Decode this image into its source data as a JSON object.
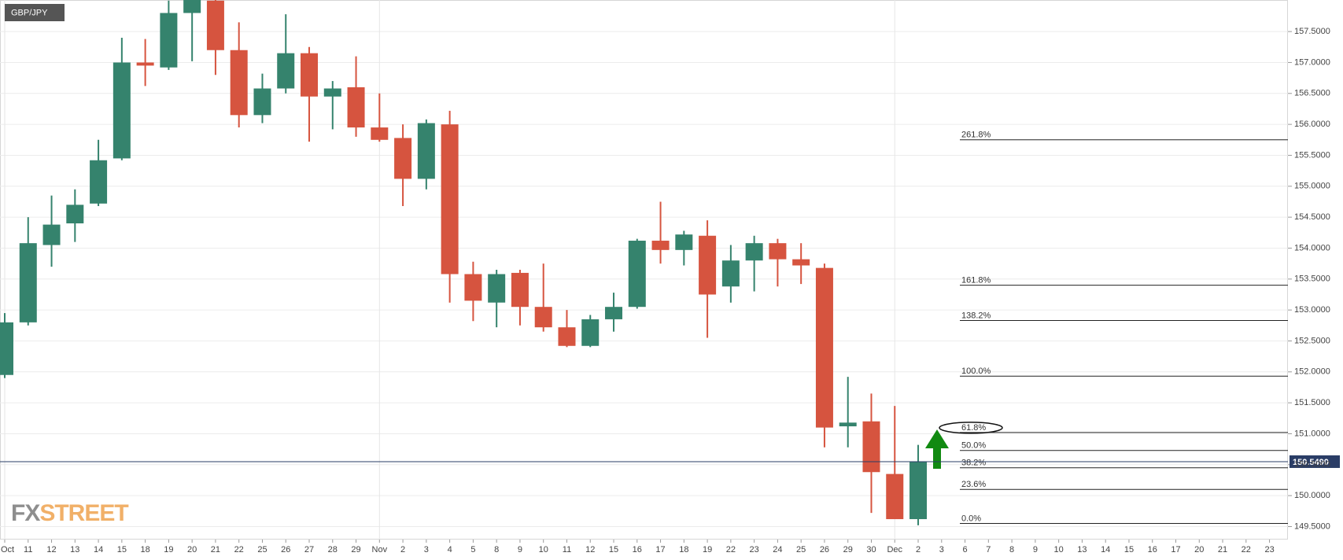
{
  "chart_data": {
    "type": "candlestick",
    "symbol": "GBP/JPY",
    "watermark": {
      "left": "FX",
      "right": "STREET"
    },
    "up_color": "#35836d",
    "down_color": "#d6543f",
    "categories": [
      "Oct",
      "11",
      "12",
      "13",
      "14",
      "15",
      "18",
      "19",
      "20",
      "21",
      "22",
      "25",
      "26",
      "27",
      "28",
      "29",
      "Nov",
      "2",
      "3",
      "4",
      "5",
      "8",
      "9",
      "10",
      "11",
      "12",
      "15",
      "16",
      "17",
      "18",
      "19",
      "22",
      "23",
      "24",
      "25",
      "26",
      "29",
      "30",
      "Dec",
      "2",
      "3",
      "6",
      "7",
      "8",
      "9",
      "10",
      "13",
      "14",
      "15",
      "16",
      "17",
      "20",
      "21",
      "22",
      "23"
    ],
    "open": [
      151.95,
      152.8,
      154.05,
      154.4,
      154.72,
      155.45,
      157.0,
      156.92,
      157.8,
      158.0,
      157.2,
      156.15,
      156.58,
      157.15,
      156.45,
      156.6,
      155.95,
      155.78,
      155.12,
      156.0,
      153.58,
      153.12,
      153.6,
      153.05,
      152.72,
      152.42,
      152.85,
      153.05,
      154.12,
      153.97,
      154.2,
      153.38,
      153.8,
      154.08,
      153.82,
      153.68,
      151.12,
      151.2,
      150.35,
      149.62,
      null,
      null,
      null,
      null,
      null,
      null,
      null,
      null,
      null,
      null,
      null,
      null,
      null,
      null,
      null
    ],
    "high": [
      152.95,
      154.5,
      154.85,
      154.95,
      155.75,
      157.4,
      157.38,
      158.0,
      158.1,
      158.1,
      157.65,
      156.82,
      157.78,
      157.25,
      156.7,
      157.1,
      156.5,
      156.0,
      156.08,
      156.22,
      153.78,
      153.65,
      153.65,
      153.75,
      153.0,
      152.92,
      153.28,
      154.15,
      154.75,
      154.28,
      154.45,
      154.05,
      154.2,
      154.15,
      154.08,
      153.75,
      151.92,
      151.65,
      151.45,
      150.82,
      null,
      null,
      null,
      null,
      null,
      null,
      null,
      null,
      null,
      null,
      null,
      null,
      null,
      null,
      null
    ],
    "low": [
      151.9,
      152.75,
      153.7,
      154.1,
      154.68,
      155.42,
      156.62,
      156.88,
      157.02,
      156.8,
      155.95,
      156.02,
      156.5,
      155.72,
      155.92,
      155.8,
      155.72,
      154.68,
      154.95,
      153.12,
      152.82,
      152.72,
      152.75,
      152.65,
      152.4,
      152.4,
      152.65,
      153.02,
      153.75,
      153.72,
      152.55,
      153.12,
      153.3,
      153.38,
      153.42,
      150.78,
      150.78,
      149.72,
      149.62,
      149.52,
      null,
      null,
      null,
      null,
      null,
      null,
      null,
      null,
      null,
      null,
      null,
      null,
      null,
      null,
      null
    ],
    "close": [
      152.8,
      154.08,
      154.38,
      154.7,
      155.42,
      157.0,
      156.95,
      157.8,
      158.05,
      157.2,
      156.15,
      156.58,
      157.15,
      156.45,
      156.58,
      155.95,
      155.75,
      155.12,
      156.02,
      153.58,
      153.15,
      153.58,
      153.05,
      152.72,
      152.42,
      152.85,
      153.05,
      154.12,
      153.97,
      154.22,
      153.25,
      153.8,
      154.08,
      153.82,
      153.72,
      151.1,
      151.18,
      150.38,
      149.62,
      150.55,
      null,
      null,
      null,
      null,
      null,
      null,
      null,
      null,
      null,
      null,
      null,
      null,
      null,
      null,
      null
    ],
    "ylim": [
      149.29,
      158.01
    ],
    "yticks": [
      {
        "value": 149.5,
        "label": "149.5000"
      },
      {
        "value": 150,
        "label": "150.0000"
      },
      {
        "value": 150.5,
        "label": "150.5000"
      },
      {
        "value": 151,
        "label": "151.0000"
      },
      {
        "value": 151.5,
        "label": "151.5000"
      },
      {
        "value": 152,
        "label": "152.0000"
      },
      {
        "value": 152.5,
        "label": "152.5000"
      },
      {
        "value": 153,
        "label": "153.0000"
      },
      {
        "value": 153.5,
        "label": "153.5000"
      },
      {
        "value": 154,
        "label": "154.0000"
      },
      {
        "value": 154.5,
        "label": "154.5000"
      },
      {
        "value": 155,
        "label": "155.0000"
      },
      {
        "value": 155.5,
        "label": "155.5000"
      },
      {
        "value": 156,
        "label": "156.0000"
      },
      {
        "value": 156.5,
        "label": "156.5000"
      },
      {
        "value": 157,
        "label": "157.0000"
      },
      {
        "value": 157.5,
        "label": "157.5000"
      }
    ],
    "grid": true,
    "last_price": {
      "value": 150.549,
      "label": "150.5490"
    },
    "fib_levels": [
      {
        "label": "261.8%",
        "price": 155.75
      },
      {
        "label": "161.8%",
        "price": 153.4
      },
      {
        "label": "138.2%",
        "price": 152.83
      },
      {
        "label": "100.0%",
        "price": 151.93
      },
      {
        "label": "61.8%",
        "price": 151.02
      },
      {
        "label": "50.0%",
        "price": 150.73
      },
      {
        "label": "38.2%",
        "price": 150.45
      },
      {
        "label": "23.6%",
        "price": 150.1
      },
      {
        "label": "0.0%",
        "price": 149.55
      }
    ]
  }
}
